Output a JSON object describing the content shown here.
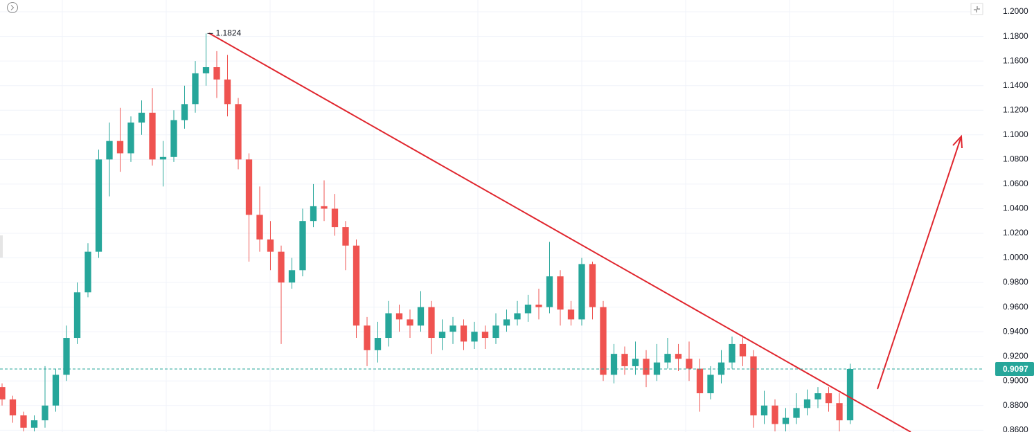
{
  "chart_data": {
    "type": "candlestick",
    "categories": [
      null,
      null,
      null,
      null,
      null,
      null,
      null,
      null,
      null,
      null,
      null,
      null,
      null,
      null,
      null,
      null,
      null,
      null,
      null,
      null,
      null,
      null,
      null,
      null,
      null,
      null,
      null,
      null,
      null,
      null,
      null,
      null,
      null,
      null,
      null,
      null,
      null,
      null,
      null,
      null,
      null,
      null,
      null,
      null,
      null,
      null,
      null,
      null,
      null,
      null,
      null,
      null,
      null,
      null,
      null,
      null,
      null,
      null,
      null,
      null,
      null,
      null,
      null,
      null,
      null,
      null,
      null,
      null,
      null,
      null,
      null,
      null,
      null,
      null,
      null,
      null,
      null,
      null,
      null,
      null
    ],
    "open": [
      0.895,
      0.885,
      0.872,
      0.862,
      0.868,
      0.88,
      0.905,
      0.935,
      0.972,
      1.005,
      1.08,
      1.095,
      1.085,
      1.11,
      1.118,
      1.08,
      1.082,
      1.112,
      1.125,
      1.15,
      1.155,
      1.145,
      1.125,
      1.08,
      1.035,
      1.015,
      1.005,
      0.98,
      0.99,
      1.03,
      1.042,
      1.04,
      1.025,
      1.01,
      0.945,
      0.925,
      0.935,
      0.955,
      0.95,
      0.945,
      0.96,
      0.935,
      0.94,
      0.945,
      0.932,
      0.94,
      0.935,
      0.945,
      0.95,
      0.955,
      0.962,
      0.96,
      0.985,
      0.958,
      0.95,
      0.995,
      0.96,
      0.905,
      0.922,
      0.912,
      0.918,
      0.905,
      0.915,
      0.922,
      0.918,
      0.91,
      0.89,
      0.905,
      0.915,
      0.93,
      0.92,
      0.872,
      0.88,
      0.865,
      0.87,
      0.878,
      0.885,
      0.89,
      0.882,
      0.868
    ],
    "high": [
      0.898,
      0.888,
      0.875,
      0.872,
      0.912,
      0.91,
      0.945,
      0.98,
      1.012,
      1.088,
      1.11,
      1.122,
      1.115,
      1.128,
      1.138,
      1.095,
      1.12,
      1.14,
      1.16,
      1.1824,
      1.168,
      1.165,
      1.13,
      1.085,
      1.058,
      1.03,
      1.01,
      1.0,
      1.04,
      1.06,
      1.063,
      1.052,
      1.03,
      1.015,
      0.952,
      0.948,
      0.965,
      0.962,
      0.958,
      0.973,
      0.965,
      0.95,
      0.952,
      0.95,
      0.948,
      0.945,
      0.955,
      0.958,
      0.965,
      0.97,
      0.975,
      1.013,
      0.99,
      0.965,
      1.0,
      0.997,
      0.965,
      0.93,
      0.928,
      0.932,
      0.925,
      0.93,
      0.935,
      0.93,
      0.932,
      0.918,
      0.912,
      0.925,
      0.936,
      0.937,
      0.925,
      0.892,
      0.885,
      0.878,
      0.89,
      0.893,
      0.895,
      0.895,
      0.89,
      0.914
    ],
    "low": [
      0.88,
      0.866,
      0.859,
      0.859,
      0.862,
      0.875,
      0.9,
      0.93,
      0.968,
      1.0,
      1.05,
      1.07,
      1.078,
      1.1,
      1.075,
      1.058,
      1.078,
      1.105,
      1.118,
      1.14,
      1.13,
      1.115,
      1.072,
      0.997,
      1.005,
      0.99,
      0.93,
      0.975,
      0.985,
      1.025,
      1.03,
      1.018,
      0.99,
      0.935,
      0.912,
      0.915,
      0.928,
      0.94,
      0.935,
      0.94,
      0.922,
      0.925,
      0.93,
      0.925,
      0.926,
      0.926,
      0.93,
      0.94,
      0.945,
      0.948,
      0.95,
      0.955,
      0.945,
      0.945,
      0.945,
      0.95,
      0.9,
      0.898,
      0.905,
      0.905,
      0.895,
      0.9,
      0.91,
      0.908,
      0.9,
      0.875,
      0.885,
      0.898,
      0.91,
      0.912,
      0.862,
      0.865,
      0.859,
      0.859,
      0.865,
      0.872,
      0.878,
      0.875,
      0.859,
      0.865
    ],
    "close": [
      0.885,
      0.872,
      0.862,
      0.868,
      0.88,
      0.905,
      0.935,
      0.972,
      1.005,
      1.08,
      1.095,
      1.085,
      1.11,
      1.118,
      1.08,
      1.082,
      1.112,
      1.125,
      1.15,
      1.155,
      1.145,
      1.125,
      1.08,
      1.035,
      1.015,
      1.005,
      0.98,
      0.99,
      1.03,
      1.042,
      1.04,
      1.025,
      1.01,
      0.945,
      0.925,
      0.935,
      0.955,
      0.95,
      0.945,
      0.96,
      0.935,
      0.94,
      0.945,
      0.932,
      0.94,
      0.935,
      0.945,
      0.95,
      0.955,
      0.962,
      0.96,
      0.985,
      0.958,
      0.95,
      0.995,
      0.96,
      0.905,
      0.922,
      0.912,
      0.918,
      0.905,
      0.915,
      0.922,
      0.918,
      0.91,
      0.89,
      0.905,
      0.915,
      0.93,
      0.92,
      0.872,
      0.88,
      0.865,
      0.87,
      0.878,
      0.885,
      0.89,
      0.882,
      0.868,
      0.9097
    ],
    "up_color": "#26a69a",
    "down_color": "#ef5350",
    "ylim": [
      0.8585,
      1.2096
    ],
    "yticks": [
      {
        "value": 0.86,
        "label": "0.8600"
      },
      {
        "value": 0.88,
        "label": "0.8800"
      },
      {
        "value": 0.9,
        "label": "0.9000"
      },
      {
        "value": 0.92,
        "label": "0.9200"
      },
      {
        "value": 0.94,
        "label": "0.9400"
      },
      {
        "value": 0.96,
        "label": "0.9600"
      },
      {
        "value": 0.98,
        "label": "0.9800"
      },
      {
        "value": 1.0,
        "label": "1.0000"
      },
      {
        "value": 1.02,
        "label": "1.0200"
      },
      {
        "value": 1.04,
        "label": "1.0400"
      },
      {
        "value": 1.06,
        "label": "1.0600"
      },
      {
        "value": 1.08,
        "label": "1.0800"
      },
      {
        "value": 1.1,
        "label": "1.1000"
      },
      {
        "value": 1.12,
        "label": "1.1200"
      },
      {
        "value": 1.14,
        "label": "1.1400"
      },
      {
        "value": 1.16,
        "label": "1.1600"
      },
      {
        "value": 1.18,
        "label": "1.1800"
      },
      {
        "value": 1.2,
        "label": "1.2000"
      }
    ],
    "grid": true,
    "high_label": 1.1824,
    "last_price": 0.9097
  }
}
